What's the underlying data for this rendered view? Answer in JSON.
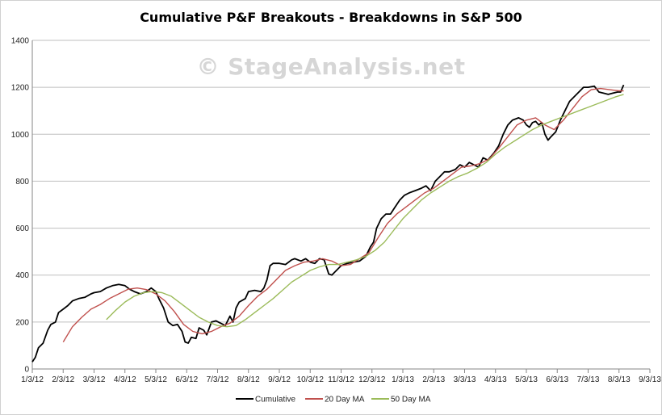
{
  "watermark": "© StageAnalysis.net",
  "chart_data": {
    "type": "line",
    "title": "Cumulative P&F Breakouts - Breakdowns in S&P 500",
    "xlabel": "",
    "ylabel": "",
    "ylim": [
      0,
      1400
    ],
    "yticks": [
      0,
      200,
      400,
      600,
      800,
      1000,
      1200,
      1400
    ],
    "xticks": [
      "1/3/12",
      "2/3/12",
      "3/3/12",
      "4/3/12",
      "5/3/12",
      "6/3/12",
      "7/3/12",
      "8/3/12",
      "9/3/12",
      "10/3/12",
      "11/3/12",
      "12/3/12",
      "1/3/13",
      "2/3/13",
      "3/3/13",
      "4/3/13",
      "5/3/13",
      "6/3/13",
      "7/3/13",
      "8/3/13",
      "9/3/13"
    ],
    "grid": true,
    "legend_position": "bottom",
    "series": [
      {
        "name": "Cumulative",
        "color": "#000000",
        "points": [
          [
            0,
            30
          ],
          [
            0.1,
            50
          ],
          [
            0.2,
            90
          ],
          [
            0.35,
            110
          ],
          [
            0.5,
            165
          ],
          [
            0.6,
            190
          ],
          [
            0.75,
            200
          ],
          [
            0.85,
            240
          ],
          [
            1.0,
            255
          ],
          [
            1.15,
            270
          ],
          [
            1.3,
            290
          ],
          [
            1.5,
            300
          ],
          [
            1.7,
            305
          ],
          [
            1.9,
            320
          ],
          [
            2.0,
            325
          ],
          [
            2.2,
            330
          ],
          [
            2.4,
            345
          ],
          [
            2.6,
            355
          ],
          [
            2.8,
            360
          ],
          [
            3.0,
            355
          ],
          [
            3.15,
            340
          ],
          [
            3.3,
            330
          ],
          [
            3.5,
            320
          ],
          [
            3.7,
            330
          ],
          [
            3.85,
            345
          ],
          [
            4.0,
            330
          ],
          [
            4.1,
            300
          ],
          [
            4.25,
            260
          ],
          [
            4.4,
            200
          ],
          [
            4.55,
            185
          ],
          [
            4.7,
            190
          ],
          [
            4.85,
            160
          ],
          [
            4.95,
            115
          ],
          [
            5.05,
            110
          ],
          [
            5.15,
            135
          ],
          [
            5.3,
            130
          ],
          [
            5.4,
            175
          ],
          [
            5.55,
            165
          ],
          [
            5.65,
            145
          ],
          [
            5.8,
            200
          ],
          [
            5.95,
            205
          ],
          [
            6.1,
            195
          ],
          [
            6.25,
            185
          ],
          [
            6.4,
            225
          ],
          [
            6.5,
            200
          ],
          [
            6.6,
            260
          ],
          [
            6.7,
            285
          ],
          [
            6.9,
            300
          ],
          [
            7.0,
            330
          ],
          [
            7.2,
            335
          ],
          [
            7.4,
            330
          ],
          [
            7.5,
            345
          ],
          [
            7.6,
            380
          ],
          [
            7.7,
            440
          ],
          [
            7.8,
            450
          ],
          [
            8.0,
            450
          ],
          [
            8.2,
            445
          ],
          [
            8.4,
            465
          ],
          [
            8.5,
            470
          ],
          [
            8.7,
            460
          ],
          [
            8.85,
            470
          ],
          [
            9.0,
            455
          ],
          [
            9.15,
            450
          ],
          [
            9.3,
            470
          ],
          [
            9.45,
            465
          ],
          [
            9.6,
            405
          ],
          [
            9.7,
            400
          ],
          [
            9.85,
            420
          ],
          [
            10.0,
            440
          ],
          [
            10.2,
            450
          ],
          [
            10.4,
            455
          ],
          [
            10.6,
            460
          ],
          [
            10.8,
            480
          ],
          [
            10.95,
            520
          ],
          [
            11.05,
            540
          ],
          [
            11.15,
            600
          ],
          [
            11.3,
            640
          ],
          [
            11.45,
            660
          ],
          [
            11.6,
            660
          ],
          [
            11.75,
            690
          ],
          [
            11.9,
            720
          ],
          [
            12.05,
            740
          ],
          [
            12.2,
            750
          ],
          [
            12.4,
            760
          ],
          [
            12.6,
            770
          ],
          [
            12.75,
            780
          ],
          [
            12.9,
            760
          ],
          [
            13.05,
            800
          ],
          [
            13.2,
            820
          ],
          [
            13.35,
            840
          ],
          [
            13.5,
            840
          ],
          [
            13.7,
            850
          ],
          [
            13.85,
            870
          ],
          [
            14.0,
            860
          ],
          [
            14.15,
            880
          ],
          [
            14.3,
            870
          ],
          [
            14.45,
            860
          ],
          [
            14.6,
            900
          ],
          [
            14.75,
            890
          ],
          [
            14.95,
            920
          ],
          [
            15.1,
            950
          ],
          [
            15.25,
            1000
          ],
          [
            15.4,
            1040
          ],
          [
            15.55,
            1060
          ],
          [
            15.75,
            1070
          ],
          [
            15.9,
            1060
          ],
          [
            16.0,
            1040
          ],
          [
            16.1,
            1030
          ],
          [
            16.2,
            1050
          ],
          [
            16.3,
            1055
          ],
          [
            16.4,
            1040
          ],
          [
            16.5,
            1050
          ],
          [
            16.6,
            1000
          ],
          [
            16.7,
            975
          ],
          [
            16.8,
            990
          ],
          [
            16.95,
            1010
          ],
          [
            17.1,
            1060
          ],
          [
            17.25,
            1100
          ],
          [
            17.4,
            1140
          ],
          [
            17.55,
            1160
          ],
          [
            17.7,
            1180
          ],
          [
            17.85,
            1200
          ],
          [
            18.0,
            1200
          ],
          [
            18.2,
            1205
          ],
          [
            18.35,
            1180
          ],
          [
            18.5,
            1175
          ],
          [
            18.65,
            1170
          ],
          [
            18.8,
            1175
          ],
          [
            18.95,
            1180
          ],
          [
            19.05,
            1180
          ],
          [
            19.15,
            1210
          ]
        ]
      },
      {
        "name": "20 Day MA",
        "color": "#c0504d",
        "points": [
          [
            1.0,
            115
          ],
          [
            1.3,
            180
          ],
          [
            1.6,
            220
          ],
          [
            1.9,
            255
          ],
          [
            2.2,
            275
          ],
          [
            2.5,
            300
          ],
          [
            2.8,
            320
          ],
          [
            3.1,
            340
          ],
          [
            3.4,
            345
          ],
          [
            3.7,
            338
          ],
          [
            4.0,
            320
          ],
          [
            4.3,
            290
          ],
          [
            4.6,
            245
          ],
          [
            4.9,
            190
          ],
          [
            5.2,
            160
          ],
          [
            5.5,
            150
          ],
          [
            5.8,
            160
          ],
          [
            6.1,
            180
          ],
          [
            6.4,
            195
          ],
          [
            6.7,
            225
          ],
          [
            7.0,
            270
          ],
          [
            7.3,
            310
          ],
          [
            7.6,
            340
          ],
          [
            7.9,
            380
          ],
          [
            8.2,
            420
          ],
          [
            8.5,
            440
          ],
          [
            8.8,
            455
          ],
          [
            9.1,
            460
          ],
          [
            9.4,
            470
          ],
          [
            9.7,
            460
          ],
          [
            10.0,
            440
          ],
          [
            10.3,
            445
          ],
          [
            10.6,
            470
          ],
          [
            10.9,
            495
          ],
          [
            11.2,
            560
          ],
          [
            11.5,
            620
          ],
          [
            11.8,
            660
          ],
          [
            12.1,
            690
          ],
          [
            12.4,
            720
          ],
          [
            12.7,
            750
          ],
          [
            13.0,
            770
          ],
          [
            13.3,
            800
          ],
          [
            13.6,
            830
          ],
          [
            13.9,
            860
          ],
          [
            14.2,
            865
          ],
          [
            14.5,
            875
          ],
          [
            14.8,
            895
          ],
          [
            15.1,
            940
          ],
          [
            15.4,
            990
          ],
          [
            15.7,
            1040
          ],
          [
            16.0,
            1060
          ],
          [
            16.3,
            1070
          ],
          [
            16.6,
            1040
          ],
          [
            16.9,
            1020
          ],
          [
            17.2,
            1060
          ],
          [
            17.5,
            1110
          ],
          [
            17.8,
            1160
          ],
          [
            18.1,
            1190
          ],
          [
            18.4,
            1195
          ],
          [
            18.7,
            1190
          ],
          [
            19.0,
            1185
          ],
          [
            19.15,
            1185
          ]
        ]
      },
      {
        "name": "50 Day MA",
        "color": "#9bbb59",
        "points": [
          [
            2.4,
            210
          ],
          [
            2.7,
            250
          ],
          [
            3.0,
            285
          ],
          [
            3.3,
            310
          ],
          [
            3.6,
            325
          ],
          [
            3.9,
            330
          ],
          [
            4.2,
            325
          ],
          [
            4.5,
            310
          ],
          [
            4.8,
            280
          ],
          [
            5.1,
            250
          ],
          [
            5.4,
            220
          ],
          [
            5.7,
            200
          ],
          [
            6.0,
            185
          ],
          [
            6.3,
            180
          ],
          [
            6.6,
            185
          ],
          [
            6.9,
            210
          ],
          [
            7.2,
            240
          ],
          [
            7.5,
            270
          ],
          [
            7.8,
            300
          ],
          [
            8.1,
            335
          ],
          [
            8.4,
            370
          ],
          [
            8.7,
            395
          ],
          [
            9.0,
            420
          ],
          [
            9.3,
            435
          ],
          [
            9.6,
            445
          ],
          [
            9.9,
            445
          ],
          [
            10.2,
            455
          ],
          [
            10.5,
            465
          ],
          [
            10.8,
            480
          ],
          [
            11.1,
            505
          ],
          [
            11.4,
            540
          ],
          [
            11.7,
            590
          ],
          [
            12.0,
            640
          ],
          [
            12.3,
            680
          ],
          [
            12.6,
            720
          ],
          [
            12.9,
            750
          ],
          [
            13.2,
            775
          ],
          [
            13.5,
            800
          ],
          [
            13.8,
            820
          ],
          [
            14.1,
            835
          ],
          [
            14.4,
            855
          ],
          [
            14.7,
            880
          ],
          [
            15.0,
            915
          ],
          [
            15.3,
            945
          ],
          [
            15.6,
            970
          ],
          [
            15.9,
            995
          ],
          [
            16.2,
            1020
          ],
          [
            16.5,
            1040
          ],
          [
            16.8,
            1055
          ],
          [
            17.1,
            1070
          ],
          [
            17.4,
            1085
          ],
          [
            17.7,
            1100
          ],
          [
            18.0,
            1115
          ],
          [
            18.3,
            1130
          ],
          [
            18.6,
            1145
          ],
          [
            18.9,
            1160
          ],
          [
            19.15,
            1170
          ]
        ]
      }
    ]
  }
}
